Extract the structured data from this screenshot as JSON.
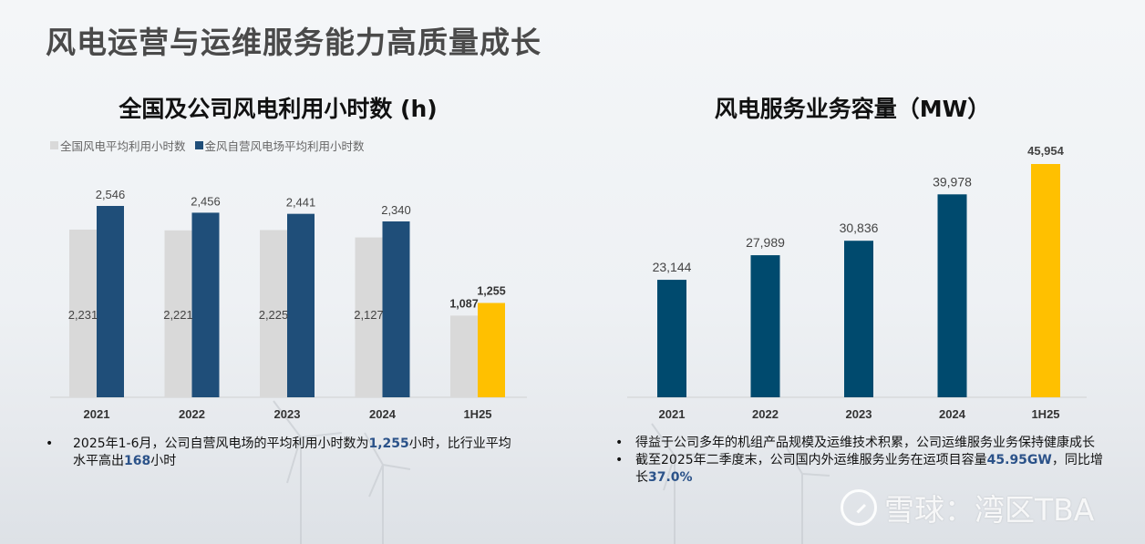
{
  "slide_title": "风电运营与运维服务能力高质量成长",
  "chart_data": [
    {
      "type": "bar",
      "title": "全国及公司风电利用小时数 (h)",
      "categories": [
        "2021",
        "2022",
        "2023",
        "2024",
        "1H25"
      ],
      "series": [
        {
          "name": "全国风电平均利用小时数",
          "values": [
            2231,
            2221,
            2225,
            2127,
            1087
          ],
          "labels": [
            "2,231",
            "2,221",
            "2,225",
            "2,127",
            "1,087"
          ],
          "color": "#d9d9d9"
        },
        {
          "name": "金风自营风电场平均利用小时数",
          "values": [
            2546,
            2456,
            2441,
            2340,
            1255
          ],
          "labels": [
            "2,546",
            "2,456",
            "2,441",
            "2,340",
            "1,255"
          ],
          "color": "#1f4e79",
          "highlight_color": "#ffc000"
        }
      ],
      "legend": "top-left",
      "grid": false
    },
    {
      "type": "bar",
      "title": "风电服务业务容量（MW）",
      "categories": [
        "2021",
        "2022",
        "2023",
        "2024",
        "1H25"
      ],
      "values": [
        23144,
        27989,
        30836,
        39978,
        45954
      ],
      "labels": [
        "23,144",
        "27,989",
        "30,836",
        "39,978",
        "45,954"
      ],
      "color": "#004a6e",
      "highlight_color": "#ffc000",
      "grid": false
    }
  ],
  "left_bullets": [
    {
      "parts": [
        "2025年1-6月，公司自营风电场的平均利用小时数为",
        "1,255",
        "小时，比行业平均水平高出",
        "168",
        "小时"
      ]
    }
  ],
  "right_bullets": [
    {
      "parts": [
        "得益于公司多年的机组产品规模及运维技术积累，公司运维服务业务保持健康成长"
      ]
    },
    {
      "parts": [
        "截至2025年二季度末，公司国内外运维服务业务在运项目容量",
        "45.95GW",
        "，同比增长",
        "37.0%"
      ]
    }
  ],
  "bullet_symbol": "•",
  "watermark": "雪球：湾区TBA"
}
